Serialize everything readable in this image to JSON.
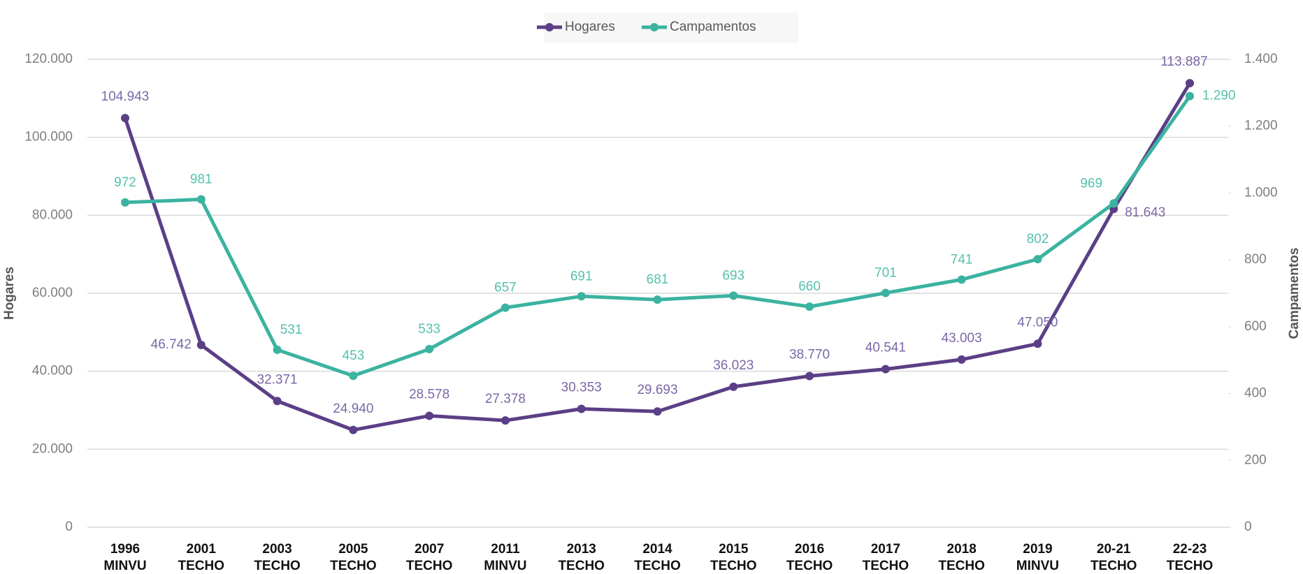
{
  "chart_data": {
    "type": "line",
    "categories": [
      "1996",
      "2001",
      "2003",
      "2005",
      "2007",
      "2011",
      "2013",
      "2014",
      "2015",
      "2016",
      "2017",
      "2018",
      "2019",
      "20-21",
      "22-23"
    ],
    "sources": [
      "MINVU",
      "TECHO",
      "TECHO",
      "TECHO",
      "TECHO",
      "MINVU",
      "TECHO",
      "TECHO",
      "TECHO",
      "TECHO",
      "TECHO",
      "TECHO",
      "MINVU",
      "TECHO",
      "TECHO"
    ],
    "ylabel": "Hogares",
    "y2label": "Campamentos",
    "ylim": [
      0,
      120000
    ],
    "yticks": [
      0,
      {
        "value": 20000,
        "label": "20.000"
      },
      {
        "value": 40000,
        "label": "40.000"
      },
      {
        "value": 60000,
        "label": "60.000"
      },
      {
        "value": 80000,
        "label": "80.000"
      },
      {
        "value": 100000,
        "label": "100.000"
      },
      {
        "value": 120000,
        "label": "120.000"
      }
    ],
    "y2lim": [
      0,
      1400
    ],
    "y2ticks": [
      0,
      200,
      400,
      600,
      800,
      {
        "value": 1000,
        "label": "1.000"
      },
      {
        "value": 1200,
        "label": "1.200"
      },
      {
        "value": 1400,
        "label": "1.400"
      }
    ],
    "grid": true,
    "legend": "top",
    "series": [
      {
        "name": "Hogares",
        "color": "#5b3f86",
        "label_color": "#7b68a6",
        "values": [
          104943,
          46742,
          32371,
          24940,
          28578,
          27378,
          30353,
          29693,
          36023,
          38770,
          40541,
          43003,
          47050,
          81643,
          113887
        ],
        "value_labels": [
          "104.943",
          "46.742",
          "32.371",
          "24.940",
          "28.578",
          "27.378",
          "30.353",
          "29.693",
          "36.023",
          "38.770",
          "40.541",
          "43.003",
          "47.050",
          "81.643",
          "113.887"
        ]
      },
      {
        "name": "Campamentos",
        "color": "#3bb3a0",
        "label_color": "#56c1ad",
        "axis": "y2",
        "values": [
          972,
          981,
          531,
          453,
          533,
          657,
          691,
          681,
          693,
          660,
          701,
          741,
          802,
          969,
          1290
        ],
        "value_labels": [
          "972",
          "981",
          "531",
          "453",
          "533",
          "657",
          "691",
          "681",
          "693",
          "660",
          "701",
          "741",
          "802",
          "969",
          "1.290"
        ]
      }
    ]
  }
}
